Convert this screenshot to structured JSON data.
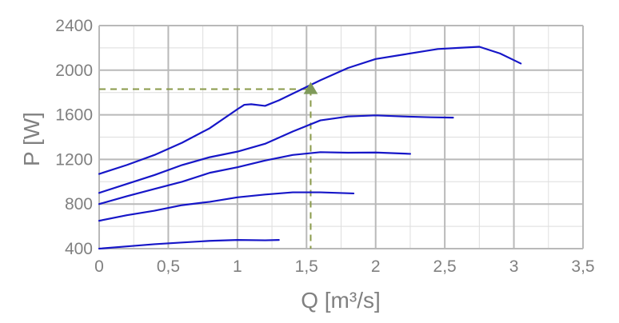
{
  "chart_data": {
    "type": "line",
    "xlabel": "Q [m³/s]",
    "ylabel": "P [W]",
    "xlim": [
      0,
      3.5
    ],
    "ylim": [
      400,
      2400
    ],
    "x_ticks": [
      "0",
      "0,5",
      "1",
      "1,5",
      "2",
      "2,5",
      "3",
      "3,5"
    ],
    "y_ticks": [
      "400",
      "800",
      "1200",
      "1600",
      "2000",
      "2400"
    ],
    "x_tick_values": [
      0,
      0.5,
      1,
      1.5,
      2,
      2.5,
      3,
      3.5
    ],
    "y_tick_values": [
      400,
      800,
      1200,
      1600,
      2000,
      2400
    ],
    "grid": true,
    "grid_minor_x_step": 0.25,
    "grid_minor_y_step": 200,
    "colors": {
      "series": "#1616c8",
      "guide": "#8a9a4a",
      "marker": "#7f9a5a"
    },
    "series": [
      {
        "x": [
          0,
          0.2,
          0.4,
          0.6,
          0.8,
          1.0,
          1.05,
          1.1,
          1.2,
          1.3,
          1.4,
          1.5,
          1.6,
          1.8,
          2.0,
          2.2,
          2.35,
          2.45,
          2.6,
          2.75,
          2.9,
          3.05
        ],
        "y": [
          1070,
          1150,
          1240,
          1350,
          1480,
          1650,
          1690,
          1695,
          1680,
          1730,
          1790,
          1850,
          1910,
          2020,
          2100,
          2140,
          2170,
          2190,
          2200,
          2210,
          2150,
          2060
        ]
      },
      {
        "x": [
          0,
          0.2,
          0.4,
          0.6,
          0.8,
          1.0,
          1.2,
          1.4,
          1.6,
          1.8,
          2.0,
          2.2,
          2.4,
          2.56
        ],
        "y": [
          900,
          980,
          1060,
          1150,
          1220,
          1270,
          1340,
          1450,
          1550,
          1585,
          1595,
          1585,
          1578,
          1575
        ]
      },
      {
        "x": [
          0,
          0.2,
          0.4,
          0.6,
          0.8,
          1.0,
          1.2,
          1.4,
          1.6,
          1.8,
          2.0,
          2.25
        ],
        "y": [
          800,
          870,
          935,
          1000,
          1080,
          1130,
          1190,
          1240,
          1265,
          1260,
          1262,
          1250
        ]
      },
      {
        "x": [
          0,
          0.2,
          0.4,
          0.6,
          0.8,
          1.0,
          1.2,
          1.4,
          1.6,
          1.84
        ],
        "y": [
          650,
          700,
          740,
          790,
          820,
          860,
          885,
          905,
          905,
          895
        ]
      },
      {
        "x": [
          0,
          0.2,
          0.4,
          0.6,
          0.8,
          1.0,
          1.2,
          1.3
        ],
        "y": [
          400,
          420,
          440,
          455,
          470,
          478,
          475,
          478
        ]
      }
    ],
    "annotations": {
      "operating_point": {
        "x": 1.53,
        "y": 1830
      }
    }
  }
}
